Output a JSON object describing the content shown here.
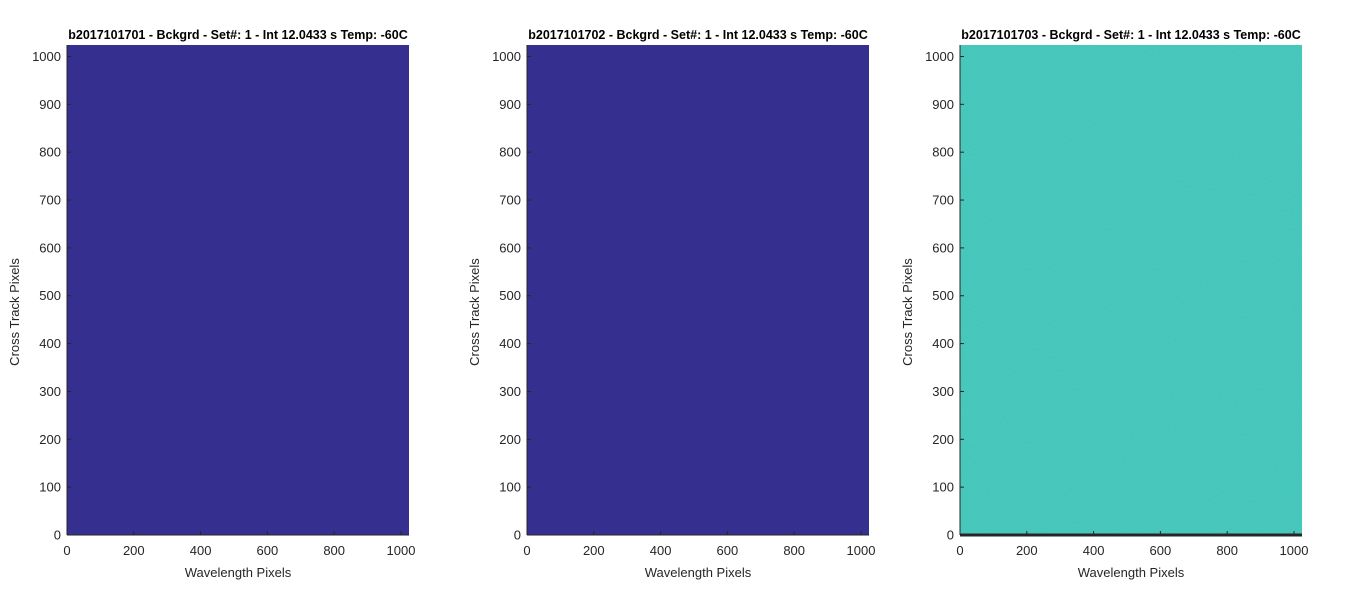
{
  "figure": {
    "panels": [
      {
        "id": "left",
        "title": "b2017101701 - Bckgrd - Set#: 1 - Int 12.0433 s Temp: -60C",
        "xlabel": "Wavelength Pixels",
        "ylabel": "Cross Track Pixels",
        "color": "#35308f",
        "bottom_line": false
      },
      {
        "id": "middle",
        "title": "b2017101702 - Bckgrd - Set#: 1 - Int 12.0433 s Temp: -60C",
        "xlabel": "Wavelength Pixels",
        "ylabel": "Cross Track Pixels",
        "color": "#35308f",
        "bottom_line": false
      },
      {
        "id": "right",
        "title": "b2017101703 - Bckgrd - Set#: 1 - Int 12.0433 s Temp: -60C",
        "xlabel": "Wavelength Pixels",
        "ylabel": "Cross Track Pixels",
        "color": "#23b1b0",
        "bottom_line": true
      }
    ]
  },
  "chart_data": [
    {
      "type": "heatmap",
      "title": "b2017101701 - Bckgrd - Set#: 1 - Int 12.0433 s Temp: -60C",
      "xlabel": "Wavelength Pixels",
      "ylabel": "Cross Track Pixels",
      "xlim": [
        0,
        1024
      ],
      "ylim": [
        0,
        1024
      ],
      "xticks": [
        0,
        200,
        400,
        600,
        800,
        1000
      ],
      "yticks": [
        0,
        100,
        200,
        300,
        400,
        500,
        600,
        700,
        800,
        900,
        1000
      ],
      "appearance": "uniform dark blue"
    },
    {
      "type": "heatmap",
      "title": "b2017101702 - Bckgrd - Set#: 1 - Int 12.0433 s Temp: -60C",
      "xlabel": "Wavelength Pixels",
      "ylabel": "Cross Track Pixels",
      "xlim": [
        0,
        1024
      ],
      "ylim": [
        0,
        1024
      ],
      "xticks": [
        0,
        200,
        400,
        600,
        800,
        1000
      ],
      "yticks": [
        0,
        100,
        200,
        300,
        400,
        500,
        600,
        700,
        800,
        900,
        1000
      ],
      "appearance": "uniform dark blue"
    },
    {
      "type": "heatmap",
      "title": "b2017101703 - Bckgrd - Set#: 1 - Int 12.0433 s Temp: -60C",
      "xlabel": "Wavelength Pixels",
      "ylabel": "Cross Track Pixels",
      "xlim": [
        0,
        1024
      ],
      "ylim": [
        0,
        1024
      ],
      "xticks": [
        0,
        200,
        400,
        600,
        800,
        1000
      ],
      "yticks": [
        0,
        100,
        200,
        300,
        400,
        500,
        600,
        700,
        800,
        900,
        1000
      ],
      "appearance": "noisy teal/green"
    }
  ]
}
